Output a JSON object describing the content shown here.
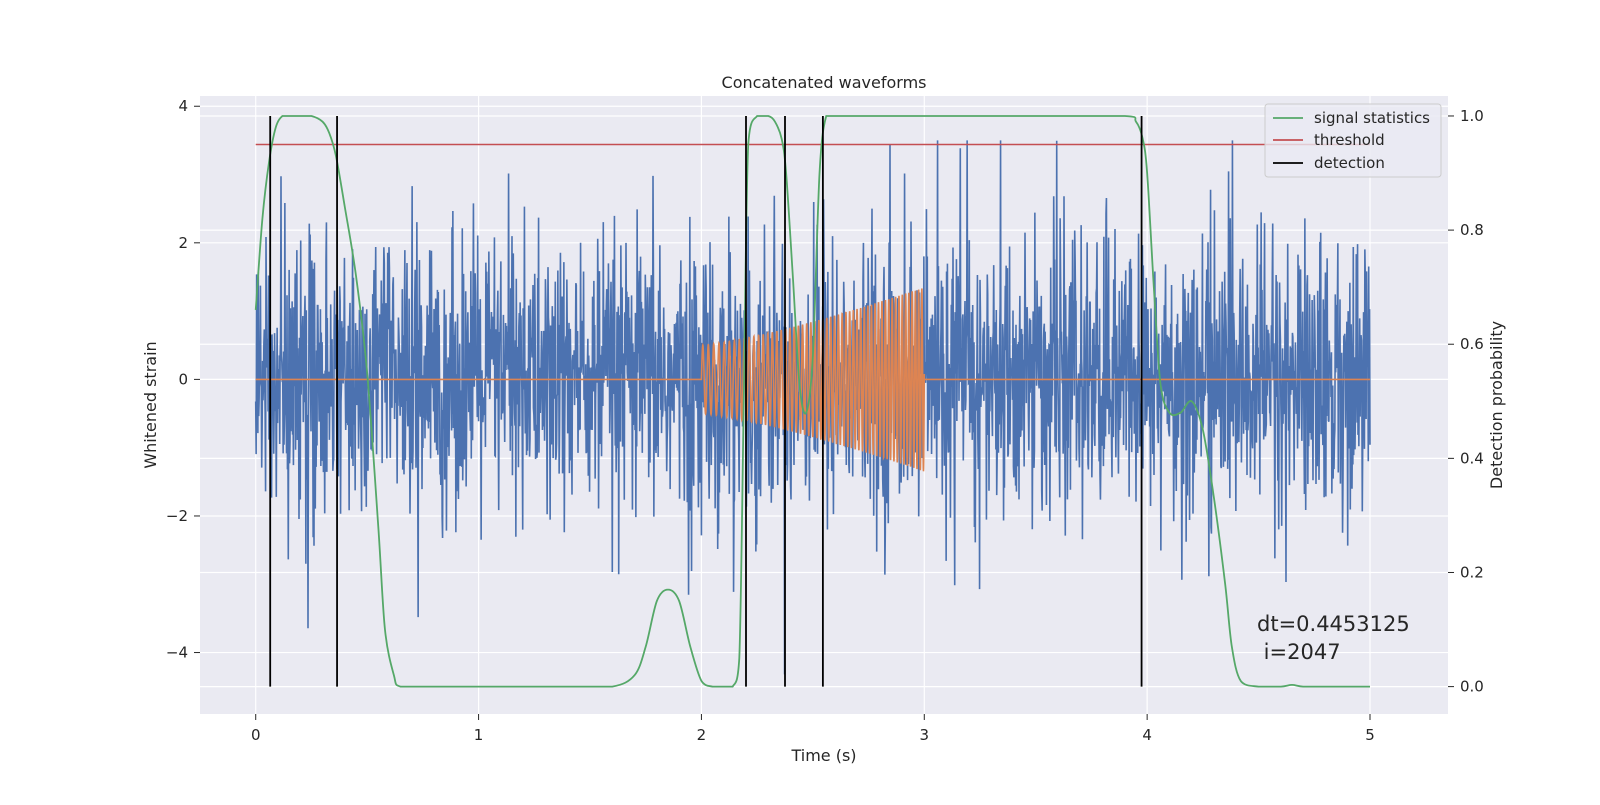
{
  "chart_data": {
    "type": "line",
    "title": "Concatenated waveforms",
    "xlabel": "Time (s)",
    "ylabel": "Whitened strain",
    "y2label": "Detection probability",
    "xlim": [
      -0.25,
      5.35
    ],
    "ylim": [
      -4.9,
      4.15
    ],
    "y2lim": [
      -0.048,
      1.035
    ],
    "xticks": [
      0,
      1,
      2,
      3,
      4,
      5
    ],
    "yticks": [
      -4,
      -2,
      0,
      2,
      4
    ],
    "y2ticks": [
      0.0,
      0.2,
      0.4,
      0.6,
      0.8,
      1.0
    ],
    "grid": true,
    "legend_position": "top-right",
    "colors": {
      "noise": "#4c72b0",
      "injection": "#dd8452",
      "signal_statistics": "#55a868",
      "threshold": "#c44e52",
      "detection": "#000000",
      "axes_background": "#eaeaf2",
      "grid": "#ffffff"
    },
    "series": [
      {
        "name": "signal statistics",
        "axis": "right",
        "x": [
          0,
          0.03,
          0.06,
          0.09,
          0.12,
          0.15,
          0.2,
          0.25,
          0.3,
          0.33,
          0.36,
          0.4,
          0.45,
          0.5,
          0.55,
          0.58,
          0.62,
          0.65,
          0.8,
          1.0,
          1.2,
          1.4,
          1.6,
          1.7,
          1.75,
          1.8,
          1.85,
          1.9,
          1.95,
          2.0,
          2.05,
          2.1,
          2.14,
          2.17,
          2.19,
          2.21,
          2.25,
          2.3,
          2.33,
          2.36,
          2.38,
          2.41,
          2.44,
          2.47,
          2.5,
          2.53,
          2.56,
          2.6,
          2.8,
          3.0,
          3.5,
          3.9,
          3.95,
          3.98,
          4.0,
          4.03,
          4.06,
          4.1,
          4.15,
          4.2,
          4.25,
          4.3,
          4.35,
          4.38,
          4.42,
          4.5,
          4.6,
          4.65,
          4.7,
          4.8,
          4.9,
          5.0
        ],
        "values": [
          0.66,
          0.82,
          0.92,
          0.98,
          1.0,
          1.0,
          1.0,
          1.0,
          0.99,
          0.97,
          0.93,
          0.84,
          0.72,
          0.55,
          0.28,
          0.1,
          0.02,
          0.0,
          0.0,
          0.0,
          0.0,
          0.0,
          0.0,
          0.02,
          0.07,
          0.15,
          0.17,
          0.15,
          0.07,
          0.01,
          0.0,
          0.0,
          0.0,
          0.05,
          0.5,
          0.95,
          1.0,
          1.0,
          0.99,
          0.96,
          0.9,
          0.72,
          0.53,
          0.48,
          0.58,
          0.9,
          1.0,
          1.0,
          1.0,
          1.0,
          1.0,
          1.0,
          0.99,
          0.96,
          0.9,
          0.7,
          0.53,
          0.48,
          0.48,
          0.5,
          0.45,
          0.33,
          0.18,
          0.07,
          0.01,
          0.0,
          0.0,
          0.003,
          0.0,
          0.0,
          0.0,
          0.0
        ]
      },
      {
        "name": "threshold",
        "axis": "right",
        "x": [
          0,
          5.0
        ],
        "values": [
          0.95,
          0.95
        ]
      },
      {
        "name": "detection",
        "axis": "right",
        "type": "vlines",
        "x": [
          0.065,
          0.365,
          2.2,
          2.375,
          2.545,
          3.975
        ],
        "range": [
          0.0,
          1.0
        ]
      }
    ],
    "noise_waveform": {
      "axis": "left",
      "x_range": [
        0,
        5.0
      ],
      "approx_envelope": [
        -3.2,
        3.5
      ],
      "note_values": "dense random whitened-strain noise sampled at high rate"
    },
    "injection_waveform": {
      "axis": "left",
      "x_range": [
        2.0,
        3.0
      ],
      "amplitude_start": 0.5,
      "amplitude_end": 1.35,
      "freq_start_hz": 40,
      "freq_end_hz": 70
    },
    "annotation": {
      "line1": "dt=0.4453125",
      "line2": " i=2047"
    },
    "legend": [
      {
        "label": "signal statistics",
        "color": "#55a868"
      },
      {
        "label": "threshold",
        "color": "#c44e52"
      },
      {
        "label": "detection",
        "color": "#000000"
      }
    ]
  }
}
